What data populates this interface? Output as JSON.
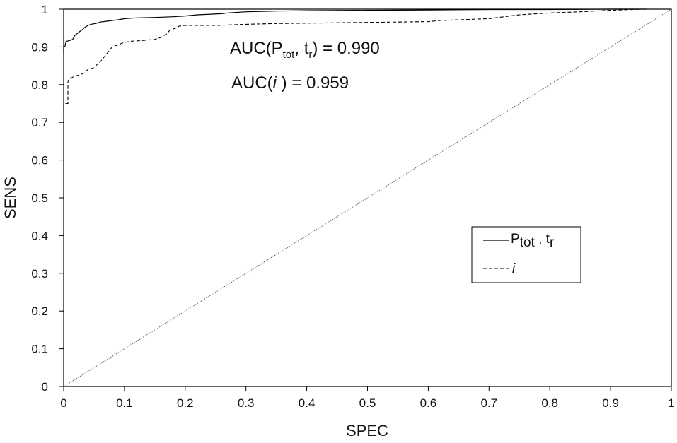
{
  "chart_data": {
    "type": "line",
    "xlabel": "SPEC",
    "ylabel": "SENS",
    "xlim": [
      0,
      1
    ],
    "ylim": [
      0,
      1
    ],
    "x_ticks": [
      "0",
      "0.1",
      "0.2",
      "0.3",
      "0.4",
      "0.5",
      "0.6",
      "0.7",
      "0.8",
      "0.9",
      "1"
    ],
    "y_ticks": [
      "0",
      "0.1",
      "0.2",
      "0.3",
      "0.4",
      "0.5",
      "0.6",
      "0.7",
      "0.8",
      "0.9",
      "1"
    ],
    "grid": false,
    "legend_placement": "right-middle",
    "annotations": [
      {
        "main": "AUC(P",
        "sub": "tot",
        "mid": ", t",
        "sub2": "r",
        "tail": ") = 0.990"
      },
      {
        "main": "AUC(",
        "italic": "i",
        "tail": " ) = 0.959"
      }
    ],
    "series": [
      {
        "legend": {
          "main": "P",
          "sub": "tot",
          "mid": " , t",
          "sub2": "r"
        },
        "style": "solid",
        "color": "#000000",
        "points": [
          [
            0,
            0.88
          ],
          [
            0,
            0.9
          ],
          [
            0.002,
            0.9
          ],
          [
            0.003,
            0.91
          ],
          [
            0.005,
            0.915
          ],
          [
            0.01,
            0.917
          ],
          [
            0.015,
            0.92
          ],
          [
            0.018,
            0.93
          ],
          [
            0.022,
            0.935
          ],
          [
            0.026,
            0.94
          ],
          [
            0.03,
            0.945
          ],
          [
            0.035,
            0.952
          ],
          [
            0.04,
            0.957
          ],
          [
            0.045,
            0.96
          ],
          [
            0.055,
            0.963
          ],
          [
            0.06,
            0.966
          ],
          [
            0.07,
            0.968
          ],
          [
            0.08,
            0.97
          ],
          [
            0.09,
            0.972
          ],
          [
            0.1,
            0.975
          ],
          [
            0.12,
            0.977
          ],
          [
            0.15,
            0.978
          ],
          [
            0.18,
            0.98
          ],
          [
            0.2,
            0.982
          ],
          [
            0.22,
            0.985
          ],
          [
            0.26,
            0.988
          ],
          [
            0.27,
            0.99
          ],
          [
            0.3,
            0.993
          ],
          [
            0.35,
            0.995
          ],
          [
            0.4,
            0.996
          ],
          [
            0.5,
            0.997
          ],
          [
            0.6,
            0.998
          ],
          [
            0.7,
            0.999
          ],
          [
            0.8,
            0.999
          ],
          [
            0.9,
            1.0
          ],
          [
            0.96,
            1.0
          ]
        ]
      },
      {
        "legend": {
          "italic": "i"
        },
        "style": "dashed",
        "color": "#000000",
        "points": [
          [
            0,
            0.74
          ],
          [
            0,
            0.75
          ],
          [
            0.007,
            0.75
          ],
          [
            0.007,
            0.81
          ],
          [
            0.01,
            0.815
          ],
          [
            0.015,
            0.82
          ],
          [
            0.02,
            0.823
          ],
          [
            0.03,
            0.828
          ],
          [
            0.035,
            0.834
          ],
          [
            0.04,
            0.84
          ],
          [
            0.05,
            0.845
          ],
          [
            0.055,
            0.853
          ],
          [
            0.06,
            0.86
          ],
          [
            0.065,
            0.87
          ],
          [
            0.07,
            0.88
          ],
          [
            0.075,
            0.89
          ],
          [
            0.08,
            0.9
          ],
          [
            0.09,
            0.906
          ],
          [
            0.1,
            0.912
          ],
          [
            0.11,
            0.915
          ],
          [
            0.13,
            0.917
          ],
          [
            0.15,
            0.92
          ],
          [
            0.16,
            0.925
          ],
          [
            0.17,
            0.935
          ],
          [
            0.175,
            0.945
          ],
          [
            0.185,
            0.95
          ],
          [
            0.19,
            0.955
          ],
          [
            0.2,
            0.957
          ],
          [
            0.25,
            0.957
          ],
          [
            0.3,
            0.96
          ],
          [
            0.35,
            0.962
          ],
          [
            0.4,
            0.963
          ],
          [
            0.5,
            0.965
          ],
          [
            0.6,
            0.967
          ],
          [
            0.62,
            0.97
          ],
          [
            0.7,
            0.975
          ],
          [
            0.75,
            0.985
          ],
          [
            0.8,
            0.99
          ],
          [
            0.85,
            0.993
          ],
          [
            0.9,
            0.997
          ],
          [
            0.95,
            1.0
          ]
        ]
      },
      {
        "style": "dotted",
        "color": "#555555",
        "points": [
          [
            0,
            0
          ],
          [
            1,
            1
          ]
        ]
      }
    ]
  }
}
